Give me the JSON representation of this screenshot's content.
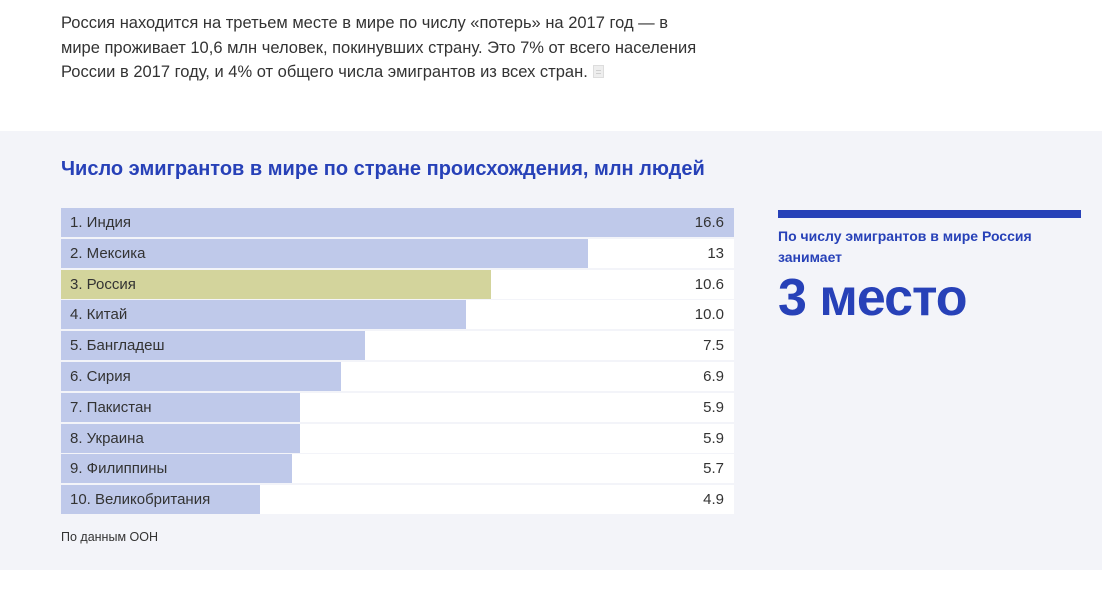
{
  "intro": {
    "text": "Россия находится на третьем месте в мире по числу «потерь» на 2017 год — в мире проживает 10,6 млн человек, покинувших страну. Это 7% от всего населения России в 2017 году, и 4% от общего числа эмигрантов из всех стран."
  },
  "chart_data": {
    "type": "bar",
    "orientation": "horizontal",
    "title": "Число эмигрантов в мире по стране происхождения, млн людей",
    "categories": [
      "1. Индия",
      "2. Мексика",
      "3. Россия",
      "4. Китай",
      "5. Бангладеш",
      "6. Сирия",
      "7. Пакистан",
      "8. Украина",
      "9. Филиппины",
      "10. Великобритания"
    ],
    "values": [
      16.6,
      13,
      10.6,
      10.0,
      7.5,
      6.9,
      5.9,
      5.9,
      5.7,
      4.9
    ],
    "value_labels": [
      "16.6",
      "13",
      "10.6",
      "10.0",
      "7.5",
      "6.9",
      "5.9",
      "5.9",
      "5.7",
      "4.9"
    ],
    "xlim": [
      0,
      16.6
    ],
    "highlight_index": 2,
    "bar_color": "#bfc9ea",
    "highlight_color": "#d3d49c",
    "grid": false,
    "source": "По данным ООН"
  },
  "callout": {
    "text": "По числу эмигрантов в мире Россия занимает",
    "big": "3 место"
  },
  "colors": {
    "accent": "#2741b8",
    "panel_bg": "#f3f4f9",
    "text": "#333333"
  }
}
